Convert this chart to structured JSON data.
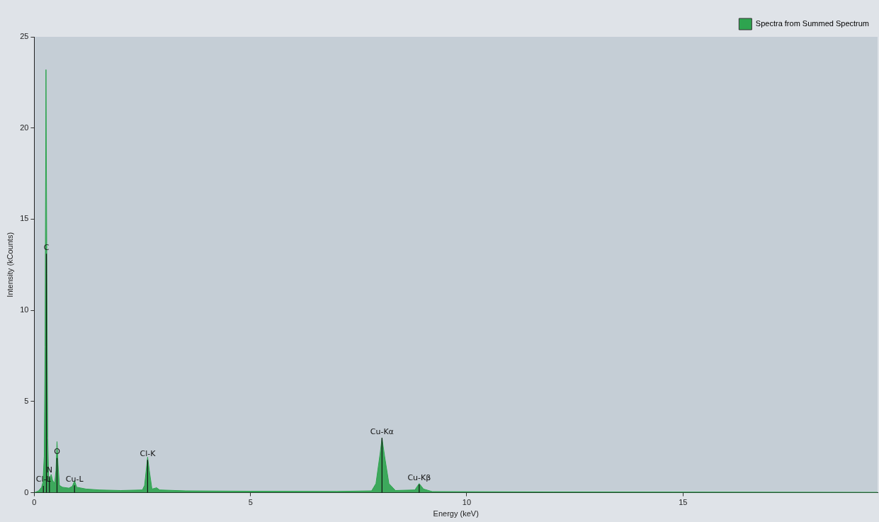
{
  "chart_data": {
    "type": "area",
    "xlabel": "Energy (keV)",
    "ylabel": "Intensity (kCounts)",
    "xlim": [
      0,
      19.5
    ],
    "xticks": [
      0,
      5,
      10,
      15
    ],
    "ylim": [
      0,
      25
    ],
    "yticks": [
      0,
      5,
      10,
      15,
      20,
      25
    ],
    "grid": false,
    "legend": "top right",
    "marker": "none",
    "series": [
      {
        "name": "Spectra from Summed Spectrum",
        "color": "#2ea44f",
        "x": [
          0,
          0.1,
          0.17,
          0.2,
          0.23,
          0.25,
          0.27,
          0.29,
          0.31,
          0.33,
          0.36,
          0.39,
          0.42,
          0.47,
          0.5,
          0.525,
          0.55,
          0.58,
          0.65,
          0.8,
          0.88,
          0.93,
          0.98,
          1.2,
          1.5,
          2.0,
          2.5,
          2.55,
          2.6,
          2.62,
          2.66,
          2.72,
          2.8,
          2.82,
          2.9,
          3.5,
          5,
          7,
          7.8,
          7.9,
          8.0,
          8.04,
          8.1,
          8.2,
          8.35,
          8.8,
          8.9,
          9.0,
          9.2,
          12,
          19.5
        ],
        "values": [
          0,
          0.1,
          0.3,
          0.6,
          2,
          8,
          23.2,
          12,
          3,
          0.9,
          0.7,
          1.0,
          0.7,
          0.5,
          1.2,
          2.8,
          1.5,
          0.4,
          0.3,
          0.25,
          0.35,
          0.65,
          0.3,
          0.2,
          0.15,
          0.12,
          0.15,
          0.4,
          1.5,
          1.95,
          1.2,
          0.2,
          0.25,
          0.28,
          0.15,
          0.1,
          0.08,
          0.07,
          0.1,
          0.5,
          2.2,
          3.0,
          2.0,
          0.5,
          0.12,
          0.15,
          0.5,
          0.2,
          0.06,
          0.04,
          0.02
        ]
      }
    ],
    "annotations": [
      {
        "text": "C",
        "x": 0.28,
        "y": 13.1
      },
      {
        "text": "Cl-L",
        "x": 0.21,
        "y": 0.37
      },
      {
        "text": "N",
        "x": 0.35,
        "y": 0.9
      },
      {
        "text": "O",
        "x": 0.525,
        "y": 1.9
      },
      {
        "text": "Cu-L",
        "x": 0.93,
        "y": 0.4
      },
      {
        "text": "Cl-K",
        "x": 2.62,
        "y": 1.8
      },
      {
        "text": "Cu-Kα",
        "x": 8.04,
        "y": 3.0
      },
      {
        "text": "Cu-Kβ",
        "x": 8.9,
        "y": 0.45
      }
    ]
  }
}
